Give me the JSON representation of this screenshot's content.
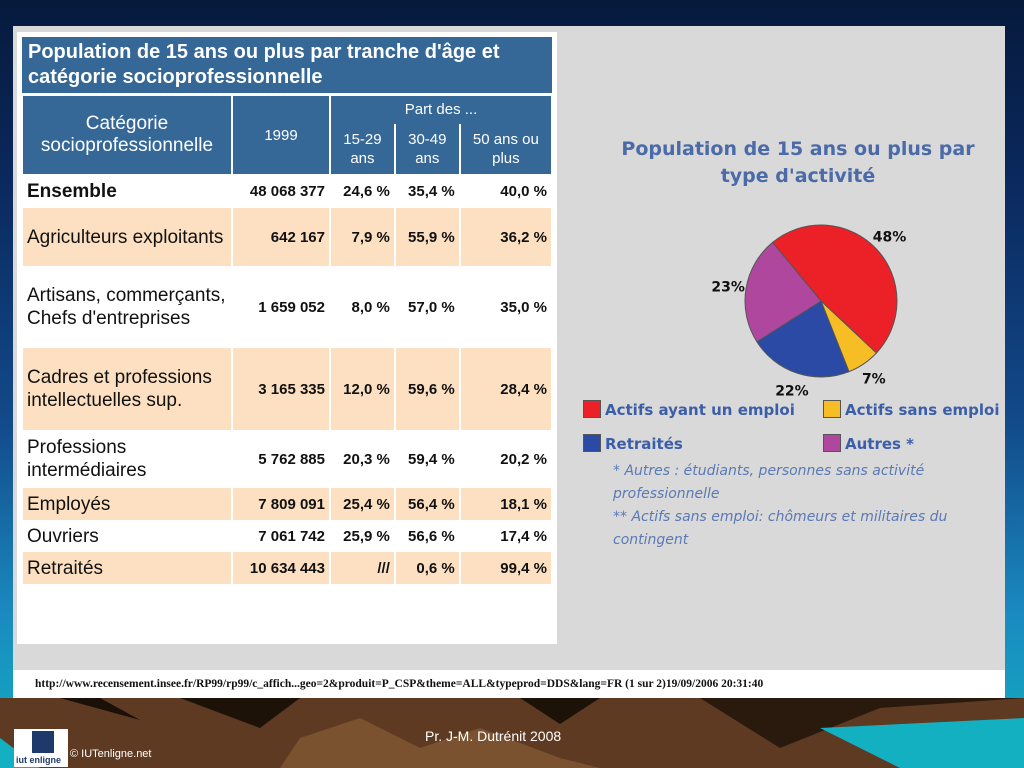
{
  "table": {
    "title": "Population de 15 ans ou plus par tranche d'âge et catégorie socioprofessionnelle",
    "headers": {
      "category": "Catégorie socioprofessionnelle",
      "year": "1999",
      "part": "Part des ...",
      "ages": [
        "15-29 ans",
        "30-49 ans",
        "50 ans ou plus"
      ]
    },
    "rows": [
      {
        "category": "Ensemble",
        "total": "48 068 377",
        "a1529": "24,6 %",
        "a3049": "35,4 %",
        "a50": "40,0 %"
      },
      {
        "category": "Agriculteurs exploitants",
        "total": "642 167",
        "a1529": "7,9 %",
        "a3049": "55,9 %",
        "a50": "36,2 %"
      },
      {
        "category": "Artisans, commerçants, Chefs d'entreprises",
        "total": "1 659 052",
        "a1529": "8,0 %",
        "a3049": "57,0 %",
        "a50": "35,0 %"
      },
      {
        "category": "Cadres et professions intellectuelles sup.",
        "total": "3 165 335",
        "a1529": "12,0 %",
        "a3049": "59,6 %",
        "a50": "28,4 %"
      },
      {
        "category": "Professions intermédiaires",
        "total": "5 762 885",
        "a1529": "20,3 %",
        "a3049": "59,4 %",
        "a50": "20,2 %"
      },
      {
        "category": "Employés",
        "total": "7 809 091",
        "a1529": "25,4 %",
        "a3049": "56,4 %",
        "a50": "18,1 %"
      },
      {
        "category": "Ouvriers",
        "total": "7 061 742",
        "a1529": "25,9 %",
        "a3049": "56,6 %",
        "a50": "17,4 %"
      },
      {
        "category": "Retraités",
        "total": "10 634 443",
        "a1529": "///",
        "a3049": "0,6 %",
        "a50": "99,4 %"
      }
    ]
  },
  "chart_data": {
    "type": "pie",
    "title": "Population de 15 ans ou plus par type d'activité",
    "slices": [
      {
        "name": "Actifs ayant un emploi",
        "value": 48,
        "label": "48%",
        "color": "#ec2027"
      },
      {
        "name": "Actifs sans emploi **",
        "value": 7,
        "label": "7%",
        "color": "#f7bd25"
      },
      {
        "name": "Retraités",
        "value": 22,
        "label": "22%",
        "color": "#2b4aa6"
      },
      {
        "name": "Autres *",
        "value": 23,
        "label": "23%",
        "color": "#b0479e"
      }
    ],
    "legend": {
      "items": [
        "Actifs ayant un emploi",
        "Actifs sans emploi",
        "Retraités",
        "Autres *"
      ],
      "placement": "bottom"
    },
    "notes": [
      "* Autres : étudiants, personnes sans activité",
      "professionnelle",
      "** Actifs sans emploi: chômeurs et militaires du",
      "contingent"
    ]
  },
  "source_url": "http://www.recensement.insee.fr/RP99/rp99/c_affich...geo=2&produit=P_CSP&theme=ALL&typeprod=DDS&lang=FR (1 sur 2)19/09/2006 20:31:40",
  "footer": {
    "author": "Pr.  J-M. Dutrénit  2008",
    "copyright": "© IUTenligne.net",
    "logo_text": "iut enligne"
  }
}
